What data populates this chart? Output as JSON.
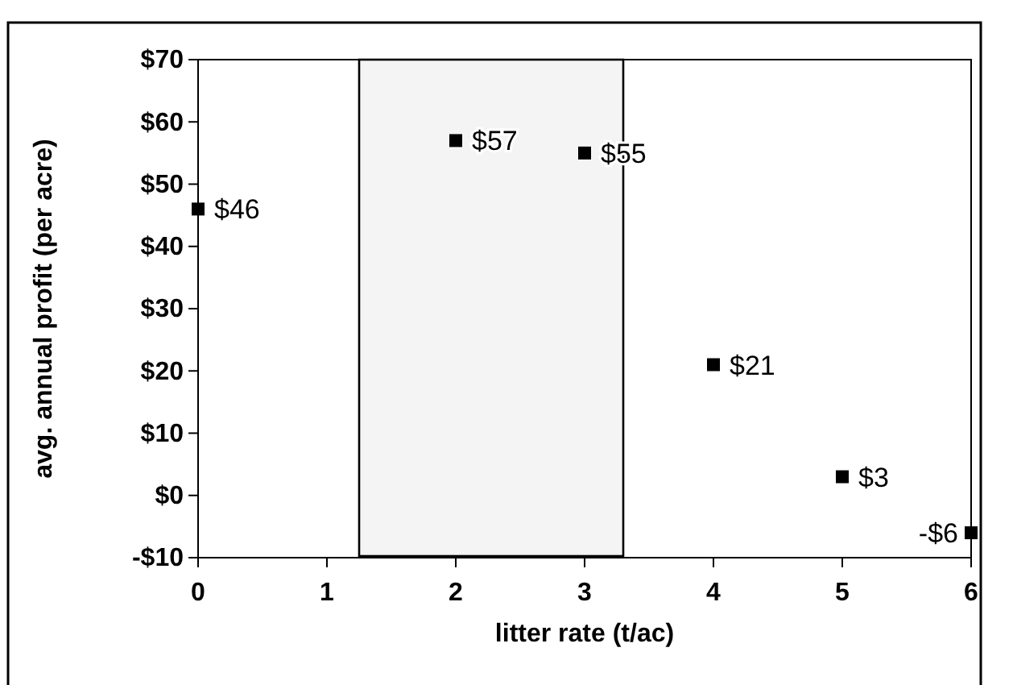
{
  "chart_data": {
    "type": "scatter",
    "xlabel": "litter rate (t/ac)",
    "ylabel": "avg. annual profit (per acre)",
    "x": [
      0,
      2,
      3,
      4,
      5,
      6
    ],
    "values": [
      46,
      57,
      55,
      21,
      3,
      -6
    ],
    "value_labels": [
      "$46",
      "$57",
      "$55",
      "$21",
      "$3",
      "-$6"
    ],
    "color": "#000000",
    "marker": "square",
    "xlim": [
      0,
      6
    ],
    "xticks": [
      0,
      1,
      2,
      3,
      4,
      5,
      6
    ],
    "ylim": [
      -10,
      70
    ],
    "yticks": [
      {
        "value": -10,
        "label": "-$10"
      },
      {
        "value": 0,
        "label": "$0"
      },
      {
        "value": 10,
        "label": "$10"
      },
      {
        "value": 20,
        "label": "$20"
      },
      {
        "value": 30,
        "label": "$30"
      },
      {
        "value": 40,
        "label": "$40"
      },
      {
        "value": 50,
        "label": "$50"
      },
      {
        "value": 60,
        "label": "$60"
      },
      {
        "value": 70,
        "label": "$70"
      }
    ],
    "bands": [
      {
        "axis": "x",
        "from": 1.25,
        "to": 3.3,
        "color": "#f4f4f4"
      }
    ],
    "grid": false
  }
}
